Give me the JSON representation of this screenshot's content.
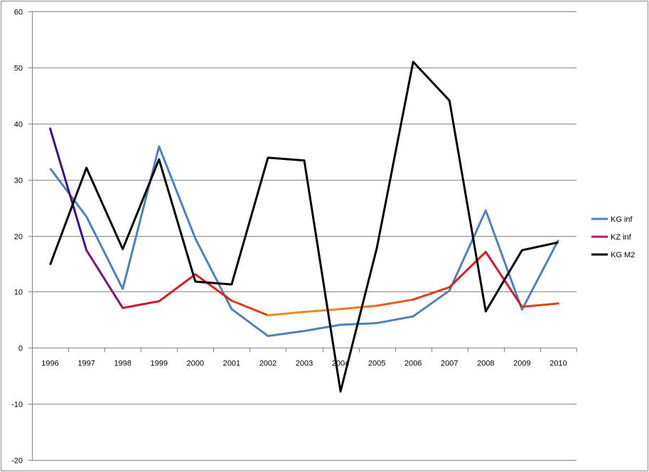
{
  "chart_data": {
    "type": "line",
    "title": "",
    "xlabel": "",
    "ylabel": "",
    "ylim": [
      -20,
      60
    ],
    "yticks": [
      -20,
      -10,
      0,
      10,
      20,
      30,
      40,
      50,
      60
    ],
    "categories": [
      "1996",
      "1997",
      "1998",
      "1999",
      "2000",
      "2001",
      "2002",
      "2003",
      "2004",
      "2005",
      "2006",
      "2007",
      "2008",
      "2009",
      "2010"
    ],
    "grid": true,
    "legend_position": "right",
    "series": [
      {
        "name": "KG inf",
        "color": "#4f81bd",
        "values": [
          32.0,
          23.4,
          10.5,
          35.9,
          19.5,
          6.9,
          2.1,
          3.0,
          4.1,
          4.4,
          5.6,
          10.2,
          24.5,
          6.8,
          19.2
        ]
      },
      {
        "name": "KZ inf",
        "color": "#c0125c",
        "segment_colors": [
          "#3d0f8f",
          "#8a1070",
          "#d0133d",
          "#d91d1d",
          "#e02020",
          "#e33d12",
          "#ee8a1a",
          "#ee8a1a",
          "#ef7a1a",
          "#ea5a18",
          "#e53b15",
          "#dd1f1f",
          "#cf1a38",
          "#e33d12"
        ],
        "values": [
          39.1,
          17.4,
          7.1,
          8.3,
          13.1,
          8.4,
          5.8,
          6.4,
          6.9,
          7.5,
          8.6,
          10.8,
          17.1,
          7.3,
          7.9
        ]
      },
      {
        "name": "KG M2",
        "color": "#000000",
        "values": [
          14.8,
          32.1,
          17.6,
          33.6,
          11.8,
          11.3,
          33.9,
          33.4,
          -7.8,
          17.8,
          51.0,
          44.1,
          6.5,
          17.4,
          18.8
        ]
      }
    ]
  }
}
